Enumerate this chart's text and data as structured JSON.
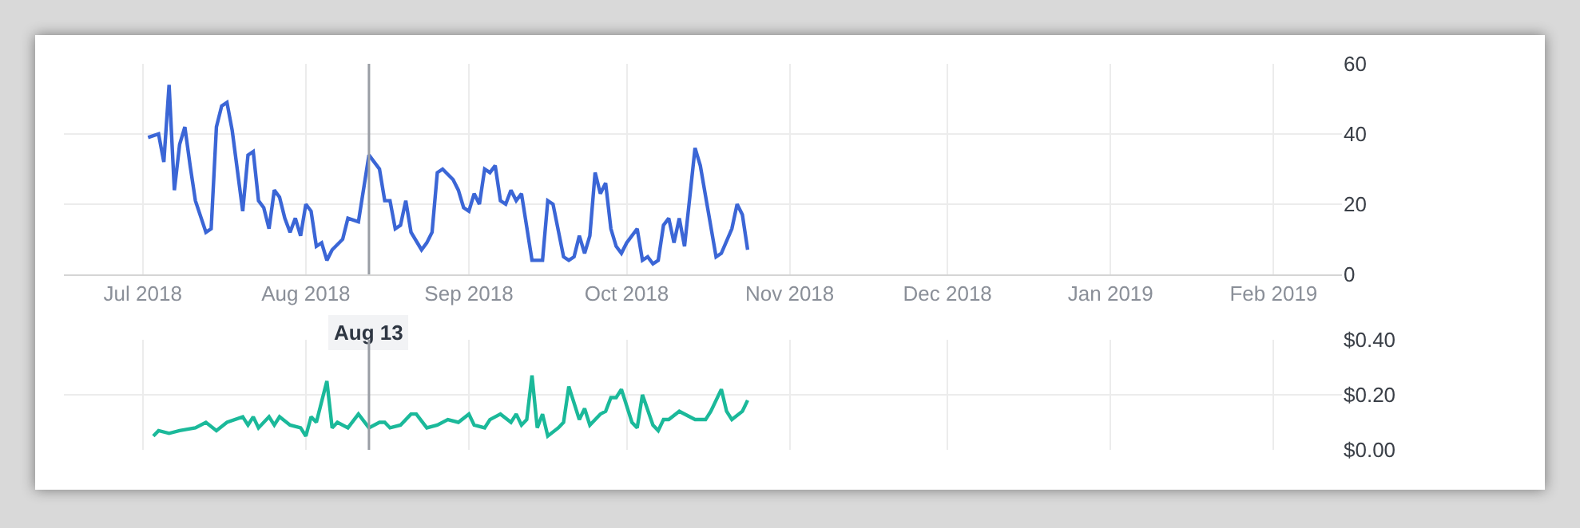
{
  "chart_data": [
    {
      "type": "line",
      "xlim": [
        "2018-06-16",
        "2019-02-14"
      ],
      "ylim": [
        0,
        60
      ],
      "yticks": [
        0,
        20,
        40,
        60
      ],
      "grid": true,
      "xticks": [
        {
          "value": "2018-07-01",
          "label": "Jul 2018"
        },
        {
          "value": "2018-08-01",
          "label": "Aug 2018"
        },
        {
          "value": "2018-09-01",
          "label": "Sep 2018"
        },
        {
          "value": "2018-10-01",
          "label": "Oct 2018"
        },
        {
          "value": "2018-11-01",
          "label": "Nov 2018"
        },
        {
          "value": "2018-12-01",
          "label": "Dec 2018"
        },
        {
          "value": "2019-01-01",
          "label": "Jan 2019"
        },
        {
          "value": "2019-02-01",
          "label": "Feb 2019"
        }
      ],
      "ref_lines": [
        {
          "axis": "x",
          "value": "2018-08-13",
          "label": "Aug 13",
          "color": "#9a9ea5"
        }
      ],
      "series": [
        {
          "color": "#3b66d6",
          "x": [
            "2018-07-02",
            "2018-07-04",
            "2018-07-05",
            "2018-07-06",
            "2018-07-07",
            "2018-07-08",
            "2018-07-09",
            "2018-07-10",
            "2018-07-11",
            "2018-07-13",
            "2018-07-14",
            "2018-07-15",
            "2018-07-16",
            "2018-07-17",
            "2018-07-18",
            "2018-07-20",
            "2018-07-21",
            "2018-07-22",
            "2018-07-23",
            "2018-07-24",
            "2018-07-25",
            "2018-07-26",
            "2018-07-27",
            "2018-07-28",
            "2018-07-29",
            "2018-07-30",
            "2018-07-31",
            "2018-08-01",
            "2018-08-02",
            "2018-08-03",
            "2018-08-04",
            "2018-08-05",
            "2018-08-06",
            "2018-08-08",
            "2018-08-09",
            "2018-08-11",
            "2018-08-13",
            "2018-08-15",
            "2018-08-16",
            "2018-08-17",
            "2018-08-18",
            "2018-08-19",
            "2018-08-20",
            "2018-08-21",
            "2018-08-23",
            "2018-08-24",
            "2018-08-25",
            "2018-08-26",
            "2018-08-27",
            "2018-08-29",
            "2018-08-30",
            "2018-08-31",
            "2018-09-01",
            "2018-09-02",
            "2018-09-03",
            "2018-09-04",
            "2018-09-05",
            "2018-09-06",
            "2018-09-07",
            "2018-09-08",
            "2018-09-09",
            "2018-09-10",
            "2018-09-11",
            "2018-09-13",
            "2018-09-15",
            "2018-09-16",
            "2018-09-17",
            "2018-09-19",
            "2018-09-20",
            "2018-09-21",
            "2018-09-22",
            "2018-09-23",
            "2018-09-24",
            "2018-09-25",
            "2018-09-26",
            "2018-09-27",
            "2018-09-28",
            "2018-09-29",
            "2018-09-30",
            "2018-10-01",
            "2018-10-03",
            "2018-10-04",
            "2018-10-05",
            "2018-10-06",
            "2018-10-07",
            "2018-10-08",
            "2018-10-09",
            "2018-10-10",
            "2018-10-11",
            "2018-10-12",
            "2018-10-14",
            "2018-10-15",
            "2018-10-18",
            "2018-10-19",
            "2018-10-21",
            "2018-10-22",
            "2018-10-23",
            "2018-10-24"
          ],
          "values": [
            39,
            40,
            32,
            54,
            24,
            37,
            42,
            31,
            21,
            12,
            13,
            42,
            48,
            49,
            41,
            18,
            34,
            35,
            21,
            19,
            13,
            24,
            22,
            16,
            12,
            16,
            11,
            20,
            18,
            8,
            9,
            4,
            7,
            10,
            16,
            15,
            34,
            30,
            21,
            21,
            13,
            14,
            21,
            12,
            7,
            9,
            12,
            29,
            30,
            27,
            24,
            19,
            18,
            23,
            20,
            30,
            29,
            31,
            21,
            20,
            24,
            21,
            23,
            4,
            4,
            21,
            20,
            5,
            4,
            5,
            11,
            6,
            11,
            29,
            23,
            26,
            13,
            8,
            6,
            9,
            13,
            4,
            5,
            3,
            4,
            14,
            16,
            9,
            16,
            8,
            36,
            31,
            5,
            6,
            13,
            20,
            17,
            7
          ]
        }
      ]
    },
    {
      "type": "line",
      "xlim": [
        "2018-06-16",
        "2019-02-14"
      ],
      "ylim": [
        0,
        0.4
      ],
      "yticks": [
        {
          "value": 0,
          "label": "$0.00"
        },
        {
          "value": 0.2,
          "label": "$0.20"
        },
        {
          "value": 0.4,
          "label": "$0.40"
        }
      ],
      "grid": true,
      "tick_labels": "y",
      "xticks": [
        {
          "value": "2018-07-01",
          "label": null
        },
        {
          "value": "2018-08-01",
          "label": null
        },
        {
          "value": "2018-09-01",
          "label": null
        },
        {
          "value": "2018-10-01",
          "label": null
        },
        {
          "value": "2018-11-01",
          "label": null
        },
        {
          "value": "2018-12-01",
          "label": null
        },
        {
          "value": "2019-01-01",
          "label": null
        },
        {
          "value": "2019-02-01",
          "label": null
        }
      ],
      "ref_lines": [
        {
          "axis": "x",
          "value": "2018-08-13",
          "color": "#9a9ea5"
        }
      ],
      "series": [
        {
          "color": "#1bb99a",
          "x": [
            "2018-07-03",
            "2018-07-04",
            "2018-07-06",
            "2018-07-08",
            "2018-07-11",
            "2018-07-13",
            "2018-07-15",
            "2018-07-17",
            "2018-07-20",
            "2018-07-21",
            "2018-07-22",
            "2018-07-23",
            "2018-07-25",
            "2018-07-26",
            "2018-07-27",
            "2018-07-29",
            "2018-07-31",
            "2018-08-01",
            "2018-08-02",
            "2018-08-03",
            "2018-08-05",
            "2018-08-06",
            "2018-08-07",
            "2018-08-09",
            "2018-08-11",
            "2018-08-13",
            "2018-08-15",
            "2018-08-16",
            "2018-08-17",
            "2018-08-19",
            "2018-08-21",
            "2018-08-22",
            "2018-08-24",
            "2018-08-26",
            "2018-08-28",
            "2018-08-30",
            "2018-09-01",
            "2018-09-02",
            "2018-09-04",
            "2018-09-05",
            "2018-09-07",
            "2018-09-09",
            "2018-09-10",
            "2018-09-11",
            "2018-09-12",
            "2018-09-13",
            "2018-09-14",
            "2018-09-15",
            "2018-09-16",
            "2018-09-18",
            "2018-09-19",
            "2018-09-20",
            "2018-09-22",
            "2018-09-23",
            "2018-09-24",
            "2018-09-26",
            "2018-09-27",
            "2018-09-28",
            "2018-09-29",
            "2018-09-30",
            "2018-10-02",
            "2018-10-03",
            "2018-10-04",
            "2018-10-06",
            "2018-10-07",
            "2018-10-08",
            "2018-10-09",
            "2018-10-11",
            "2018-10-14",
            "2018-10-16",
            "2018-10-17",
            "2018-10-19",
            "2018-10-20",
            "2018-10-21",
            "2018-10-23",
            "2018-10-24"
          ],
          "values": [
            0.05,
            0.07,
            0.06,
            0.07,
            0.08,
            0.1,
            0.07,
            0.1,
            0.12,
            0.09,
            0.12,
            0.08,
            0.12,
            0.09,
            0.12,
            0.09,
            0.08,
            0.05,
            0.12,
            0.1,
            0.25,
            0.08,
            0.1,
            0.08,
            0.13,
            0.08,
            0.1,
            0.1,
            0.08,
            0.09,
            0.13,
            0.13,
            0.08,
            0.09,
            0.11,
            0.1,
            0.13,
            0.09,
            0.08,
            0.11,
            0.13,
            0.1,
            0.13,
            0.09,
            0.11,
            0.27,
            0.08,
            0.13,
            0.05,
            0.08,
            0.1,
            0.23,
            0.11,
            0.15,
            0.09,
            0.13,
            0.14,
            0.19,
            0.19,
            0.22,
            0.1,
            0.08,
            0.2,
            0.09,
            0.07,
            0.11,
            0.11,
            0.14,
            0.11,
            0.11,
            0.14,
            0.22,
            0.14,
            0.11,
            0.14,
            0.18
          ]
        }
      ]
    }
  ]
}
